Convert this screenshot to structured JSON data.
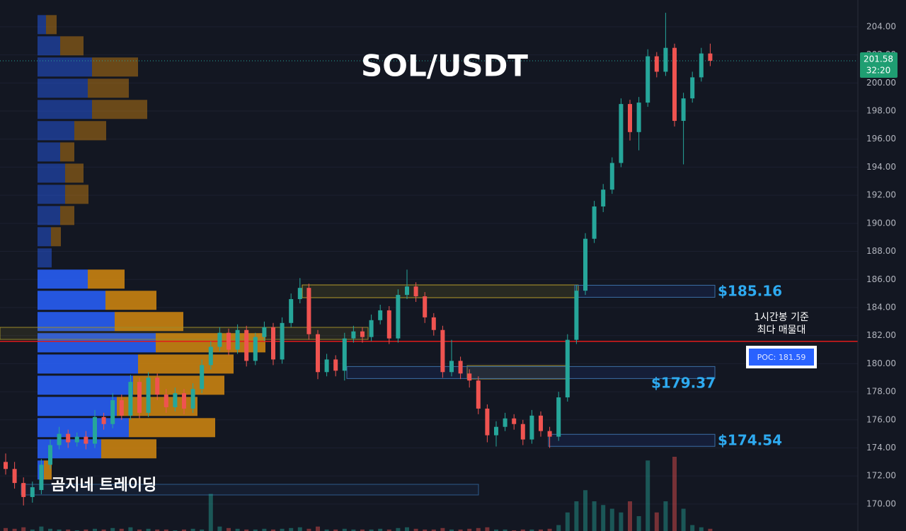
{
  "chart_data": {
    "type": "candlestick",
    "title": "SOL/USDT",
    "ylim": [
      168.08,
      205.91
    ],
    "yticks": [
      {
        "value": 170,
        "label": "170.00"
      },
      {
        "value": 172,
        "label": "172.00"
      },
      {
        "value": 174,
        "label": "174.00"
      },
      {
        "value": 176,
        "label": "176.00"
      },
      {
        "value": 178,
        "label": "178.00"
      },
      {
        "value": 180,
        "label": "180.00"
      },
      {
        "value": 182,
        "label": "182.00"
      },
      {
        "value": 184,
        "label": "184.00"
      },
      {
        "value": 186,
        "label": "186.00"
      },
      {
        "value": 188,
        "label": "188.00"
      },
      {
        "value": 190,
        "label": "190.00"
      },
      {
        "value": 192,
        "label": "192.00"
      },
      {
        "value": 194,
        "label": "194.00"
      },
      {
        "value": 196,
        "label": "196.00"
      },
      {
        "value": 198,
        "label": "198.00"
      },
      {
        "value": 200,
        "label": "200.00"
      },
      {
        "value": 202,
        "label": "202.00"
      },
      {
        "value": 204,
        "label": "204.00"
      }
    ],
    "up_color": "#26a69a",
    "down_color": "#ef5350",
    "candles": [
      [
        173,
        173.6,
        172.1,
        172.5
      ],
      [
        172.5,
        173,
        171.1,
        171.5
      ],
      [
        171.5,
        171.9,
        169.9,
        170.5
      ],
      [
        170.5,
        171.6,
        170.1,
        171.2
      ],
      [
        171,
        173.2,
        170.7,
        172.8
      ],
      [
        172.8,
        174.6,
        172.5,
        174.2
      ],
      [
        174.2,
        175.5,
        173.9,
        175
      ],
      [
        175,
        175.3,
        174,
        174.4
      ],
      [
        174.4,
        175.1,
        174.1,
        174.8
      ],
      [
        174.8,
        175.2,
        173.9,
        174.3
      ],
      [
        174.3,
        176.7,
        174,
        176.2
      ],
      [
        176.2,
        176.5,
        175.3,
        175.7
      ],
      [
        175.7,
        177.9,
        175.4,
        177.4
      ],
      [
        177.4,
        177.8,
        176,
        176.3
      ],
      [
        176.3,
        179.2,
        176,
        178.7
      ],
      [
        178.7,
        179,
        176.1,
        176.5
      ],
      [
        176.5,
        179.4,
        176.2,
        179
      ],
      [
        179,
        179.3,
        177.4,
        177.8
      ],
      [
        177.8,
        178.2,
        176.5,
        176.9
      ],
      [
        176.9,
        178.3,
        176.6,
        177.9
      ],
      [
        177.9,
        178.2,
        176.4,
        176.8
      ],
      [
        176.8,
        178.6,
        176.5,
        178.2
      ],
      [
        178.2,
        180.3,
        177.9,
        179.9
      ],
      [
        179.9,
        181.6,
        179.6,
        181.2
      ],
      [
        181.2,
        182.6,
        180.9,
        182.2
      ],
      [
        182.2,
        182.5,
        180.6,
        181
      ],
      [
        181,
        182.8,
        180.7,
        182.4
      ],
      [
        182.4,
        182.7,
        179.8,
        180.2
      ],
      [
        180.2,
        182.2,
        179.9,
        181.9
      ],
      [
        181.9,
        183,
        181.6,
        182.6
      ],
      [
        182.6,
        182.9,
        179.9,
        180.3
      ],
      [
        180.3,
        183.3,
        180,
        182.9
      ],
      [
        182.9,
        185,
        182.6,
        184.6
      ],
      [
        184.6,
        186.1,
        184.3,
        185.4
      ],
      [
        185.4,
        185.7,
        181.7,
        182.1
      ],
      [
        182.1,
        182.4,
        178.9,
        179.4
      ],
      [
        179.4,
        180.7,
        179.1,
        180.3
      ],
      [
        180.3,
        180.6,
        179.1,
        179.5
      ],
      [
        179.5,
        182.2,
        178.8,
        181.8
      ],
      [
        181.8,
        182.7,
        181.5,
        182.3
      ],
      [
        182.3,
        182.6,
        181.5,
        181.9
      ],
      [
        181.9,
        183.5,
        181.6,
        183.1
      ],
      [
        183.1,
        184.2,
        182.8,
        183.8
      ],
      [
        183.8,
        184.1,
        181.4,
        181.8
      ],
      [
        181.8,
        185.3,
        181.5,
        184.9
      ],
      [
        184.9,
        186.7,
        184.6,
        185.5
      ],
      [
        185.5,
        185.8,
        184.4,
        184.8
      ],
      [
        184.8,
        185.1,
        182.9,
        183.3
      ],
      [
        183.3,
        183.6,
        182,
        182.4
      ],
      [
        182.4,
        182.7,
        179,
        179.4
      ],
      [
        179.4,
        181.7,
        179.1,
        180.2
      ],
      [
        180.2,
        180.5,
        178.9,
        179.3
      ],
      [
        179.3,
        179.6,
        178.3,
        178.8
      ],
      [
        178.8,
        179.1,
        176.4,
        176.8
      ],
      [
        176.8,
        177.1,
        174.4,
        174.9
      ],
      [
        174.9,
        175.9,
        174.1,
        175.5
      ],
      [
        175.5,
        176.5,
        175.2,
        176.1
      ],
      [
        176.1,
        176.4,
        175.3,
        175.7
      ],
      [
        175.7,
        176,
        174.2,
        174.6
      ],
      [
        174.6,
        176.7,
        174.3,
        176.3
      ],
      [
        176.3,
        176.6,
        174.8,
        175.2
      ],
      [
        175.2,
        175.5,
        174,
        174.8
      ],
      [
        174.8,
        178,
        174.5,
        177.6
      ],
      [
        177.6,
        182.1,
        177.3,
        181.7
      ],
      [
        181.7,
        185.6,
        181.4,
        185.2
      ],
      [
        185.2,
        189.3,
        184.9,
        188.9
      ],
      [
        188.9,
        191.6,
        188.6,
        191.2
      ],
      [
        191.2,
        192.8,
        190.8,
        192.4
      ],
      [
        192.4,
        194.7,
        192.1,
        194.3
      ],
      [
        194.3,
        198.9,
        194,
        198.5
      ],
      [
        198.5,
        198.8,
        195.9,
        196.5
      ],
      [
        196.5,
        199,
        195.2,
        198.6
      ],
      [
        198.6,
        202.4,
        198.3,
        201.9
      ],
      [
        201.9,
        202.2,
        200.4,
        200.8
      ],
      [
        200.8,
        205,
        200.5,
        202.5
      ],
      [
        202.5,
        202.8,
        196.9,
        197.3
      ],
      [
        197.3,
        199.3,
        194.2,
        198.9
      ],
      [
        198.9,
        200.8,
        198.6,
        200.4
      ],
      [
        200.4,
        202.5,
        200.1,
        202.1
      ],
      [
        202.1,
        202.8,
        201.2,
        201.58
      ]
    ],
    "volume": [
      4,
      3,
      5,
      2,
      6,
      3,
      2,
      2,
      1,
      2,
      3,
      2,
      4,
      3,
      5,
      2,
      3,
      2,
      2,
      1,
      2,
      3,
      2,
      50,
      6,
      4,
      3,
      2,
      2,
      3,
      2,
      3,
      4,
      5,
      3,
      6,
      2,
      2,
      3,
      2,
      2,
      2,
      3,
      2,
      4,
      5,
      3,
      2,
      2,
      4,
      2,
      2,
      3,
      4,
      5,
      2,
      2,
      1,
      2,
      2,
      2,
      3,
      8,
      25,
      40,
      55,
      40,
      35,
      30,
      25,
      40,
      20,
      95,
      25,
      40,
      100,
      30,
      8,
      5,
      3
    ],
    "volume_profile": {
      "bin_edges": [
        204.91,
        203.4,
        201.89,
        200.38,
        198.87,
        197.36,
        195.84,
        194.33,
        192.82,
        191.31,
        189.8,
        188.29,
        186.78,
        185.27,
        183.76,
        182.25,
        180.73,
        179.22,
        177.71,
        176.2,
        174.69,
        173.18,
        171.67
      ],
      "buy": [
        12,
        32,
        77,
        71,
        77,
        52,
        32,
        39,
        39,
        32,
        19,
        20,
        71,
        96,
        109,
        167,
        142,
        135,
        112,
        129,
        90,
        9
      ],
      "sell": [
        15,
        33,
        65,
        58,
        78,
        45,
        20,
        26,
        33,
        20,
        14,
        0,
        52,
        72,
        97,
        155,
        135,
        129,
        114,
        122,
        78,
        11
      ],
      "buy_color": "#2962ff",
      "sell_color": "#d4880f",
      "value_area_bins": [
        12,
        21
      ]
    },
    "poc": {
      "value": 181.59,
      "label": "POC: 181.59"
    },
    "poc_note": [
      "1시간봉 기준",
      "최다 매물대"
    ],
    "levels": [
      {
        "value": 185.16,
        "label": "$185.16"
      },
      {
        "value": 179.37,
        "label": "$179.37"
      },
      {
        "value": 174.54,
        "label": "$174.54"
      }
    ],
    "last_price": 201.58,
    "countdown": "32:20",
    "watermark": "곰지네 트레이딩"
  }
}
